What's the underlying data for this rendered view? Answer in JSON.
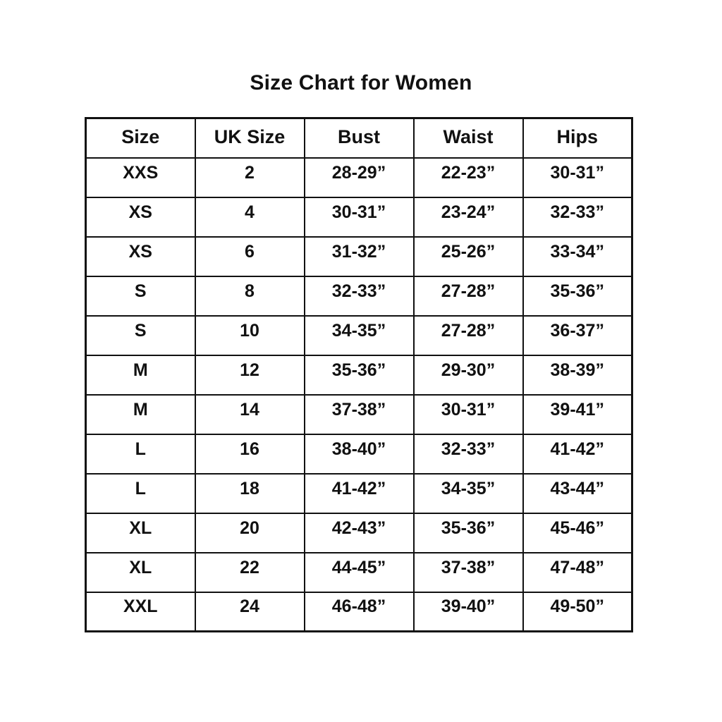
{
  "page": {
    "title": "Size Chart for Women"
  },
  "chart_data": {
    "type": "table",
    "title": "Size Chart for Women",
    "columns": [
      "Size",
      "UK Size",
      "Bust",
      "Waist",
      "Hips"
    ],
    "rows": [
      [
        "XXS",
        "2",
        "28-29”",
        "22-23”",
        "30-31”"
      ],
      [
        "XS",
        "4",
        "30-31”",
        "23-24”",
        "32-33”"
      ],
      [
        "XS",
        "6",
        "31-32”",
        "25-26”",
        "33-34”"
      ],
      [
        "S",
        "8",
        "32-33”",
        "27-28”",
        "35-36”"
      ],
      [
        "S",
        "10",
        "34-35”",
        "27-28”",
        "36-37”"
      ],
      [
        "M",
        "12",
        "35-36”",
        "29-30”",
        "38-39”"
      ],
      [
        "M",
        "14",
        "37-38”",
        "30-31”",
        "39-41”"
      ],
      [
        "L",
        "16",
        "38-40”",
        "32-33”",
        "41-42”"
      ],
      [
        "L",
        "18",
        "41-42”",
        "34-35”",
        "43-44”"
      ],
      [
        "XL",
        "20",
        "42-43”",
        "35-36”",
        "45-46”"
      ],
      [
        "XL",
        "22",
        "44-45”",
        "37-38”",
        "47-48”"
      ],
      [
        "XXL",
        "24",
        "46-48”",
        "39-40”",
        "49-50”"
      ]
    ],
    "layout": {
      "header_row": true,
      "grid": true,
      "text_align": "center"
    },
    "colors": {
      "text": "#111111",
      "border": "#111111",
      "background": "#ffffff"
    }
  }
}
